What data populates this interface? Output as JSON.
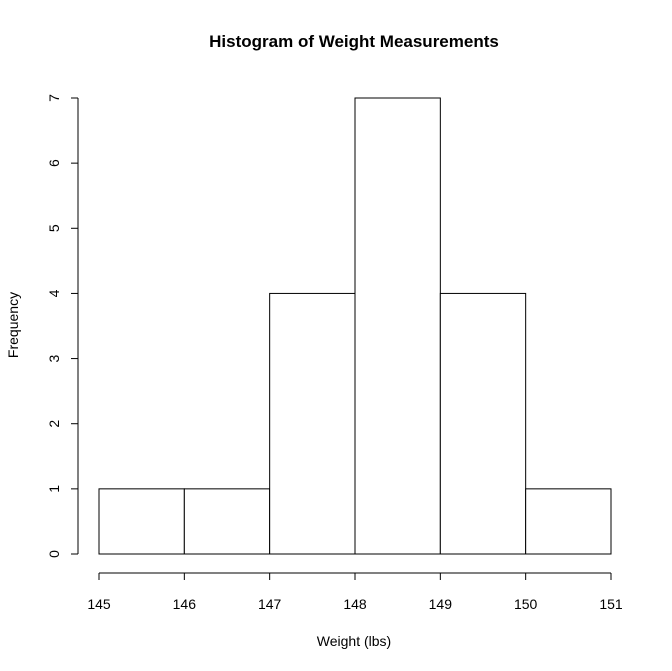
{
  "chart_data": {
    "type": "bar",
    "title": "Histogram of Weight Measurements",
    "xlabel": "Weight (lbs)",
    "ylabel": "Frequency",
    "bins": [
      {
        "start": 145,
        "end": 146,
        "count": 1
      },
      {
        "start": 146,
        "end": 147,
        "count": 1
      },
      {
        "start": 147,
        "end": 148,
        "count": 4
      },
      {
        "start": 148,
        "end": 149,
        "count": 7
      },
      {
        "start": 149,
        "end": 150,
        "count": 4
      },
      {
        "start": 150,
        "end": 151,
        "count": 1
      }
    ],
    "xlim": [
      145,
      151
    ],
    "ylim": [
      0,
      7
    ],
    "xticks": [
      145,
      146,
      147,
      148,
      149,
      150,
      151
    ],
    "yticks": [
      0,
      1,
      2,
      3,
      4,
      5,
      6,
      7
    ],
    "bar_fill": "#ffffff",
    "bar_stroke": "#000000",
    "grid": false,
    "legend": false
  }
}
